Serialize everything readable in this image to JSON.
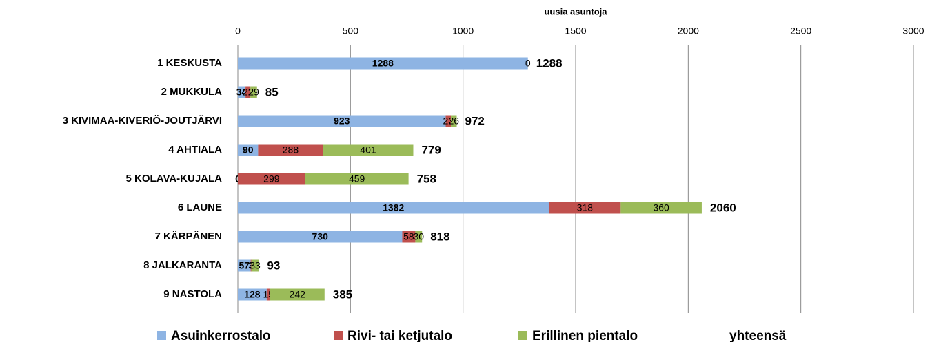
{
  "chart_data": {
    "type": "stacked_barh",
    "x_label": "uusia asuntoja",
    "categories": [
      "1 KESKUSTA",
      "2 MUKKULA",
      "3 KIVIMAA-KIVERIÖ-JOUTJÄRVI",
      "4 AHTIALA",
      "5 KOLAVA-KUJALA",
      "6 LAUNE",
      "7 KÄRPÄNEN",
      "8 JALKARANTA",
      "9 NASTOLA"
    ],
    "series": [
      {
        "name": "Asuinkerrostalo",
        "color": "#8eb4e3",
        "values": [
          1288,
          34,
          923,
          90,
          0,
          1382,
          730,
          57,
          128
        ]
      },
      {
        "name": "Rivi- tai ketjutalo",
        "color": "#c0504d",
        "values": [
          null,
          22,
          23,
          288,
          299,
          318,
          58,
          3,
          15
        ]
      },
      {
        "name": "Erillinen pientalo",
        "color": "#9bbb59",
        "values": [
          0,
          29,
          26,
          401,
          459,
          360,
          30,
          33,
          242
        ]
      }
    ],
    "totals": {
      "name": "yhteensä",
      "color": "#c00000",
      "values": [
        1288,
        85,
        972,
        779,
        758,
        2060,
        818,
        93,
        385
      ]
    },
    "xlim": [
      0,
      3000
    ],
    "xticks": [
      0,
      500,
      1000,
      1500,
      2000,
      2500,
      3000
    ],
    "grid": true
  }
}
